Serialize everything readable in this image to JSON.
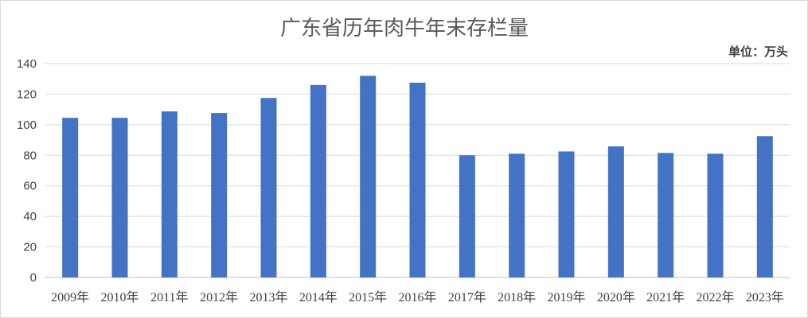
{
  "chart_data": {
    "type": "bar",
    "title": "广东省历年肉牛年末存栏量",
    "unit_label": "单位：万头",
    "categories": [
      "2009年",
      "2010年",
      "2011年",
      "2012年",
      "2013年",
      "2014年",
      "2015年",
      "2016年",
      "2017年",
      "2018年",
      "2019年",
      "2020年",
      "2021年",
      "2022年",
      "2023年"
    ],
    "values": [
      104.5,
      104.5,
      108.7,
      107.7,
      117.5,
      126.0,
      132.0,
      127.5,
      80.0,
      81.0,
      82.5,
      85.8,
      81.5,
      81.0,
      92.5
    ],
    "ylim": [
      0,
      140
    ],
    "yticks": [
      "0",
      "20",
      "40",
      "60",
      "80",
      "100",
      "120",
      "140"
    ],
    "bar_color": "#4472c4",
    "grid": true,
    "legend": "none"
  }
}
